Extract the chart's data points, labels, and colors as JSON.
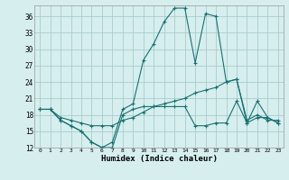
{
  "title": "",
  "xlabel": "Humidex (Indice chaleur)",
  "background_color": "#d6eeee",
  "grid_color": "#aacccc",
  "line_color": "#1a7070",
  "x": [
    0,
    1,
    2,
    3,
    4,
    5,
    6,
    7,
    8,
    9,
    10,
    11,
    12,
    13,
    14,
    15,
    16,
    17,
    18,
    19,
    20,
    21,
    22,
    23
  ],
  "line1": [
    19.0,
    19.0,
    17.0,
    16.0,
    15.0,
    13.0,
    12.0,
    12.0,
    18.0,
    19.0,
    19.5,
    19.5,
    19.5,
    19.5,
    19.5,
    16.0,
    16.0,
    16.5,
    16.5,
    20.5,
    16.5,
    17.5,
    17.5,
    16.5
  ],
  "line2": [
    19.0,
    19.0,
    17.0,
    16.0,
    15.0,
    13.0,
    12.0,
    13.0,
    19.0,
    20.0,
    28.0,
    31.0,
    35.0,
    37.5,
    37.5,
    27.5,
    36.5,
    36.0,
    24.0,
    24.5,
    16.5,
    20.5,
    17.5,
    16.5
  ],
  "line3": [
    19.0,
    19.0,
    17.5,
    17.0,
    16.5,
    16.0,
    16.0,
    16.0,
    17.0,
    17.5,
    18.5,
    19.5,
    20.0,
    20.5,
    21.0,
    22.0,
    22.5,
    23.0,
    24.0,
    24.5,
    17.0,
    18.0,
    17.0,
    17.0
  ],
  "ylim": [
    12,
    38
  ],
  "yticks": [
    12,
    15,
    18,
    21,
    24,
    27,
    30,
    33,
    36
  ],
  "xlim": [
    -0.5,
    23.5
  ]
}
